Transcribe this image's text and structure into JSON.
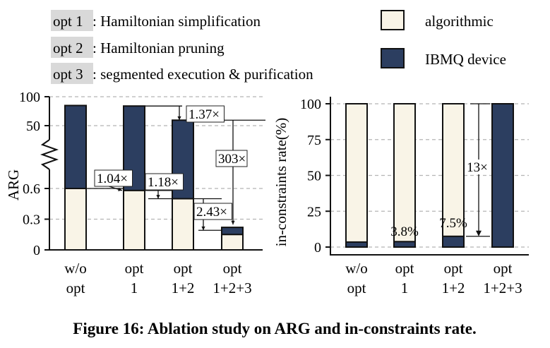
{
  "legend_text": [
    {
      "tag": "opt 1",
      "text": ": Hamiltonian simplification"
    },
    {
      "tag": "opt 2",
      "text": ": Hamiltonian pruning"
    },
    {
      "tag": "opt 3",
      "text": ": segmented execution & purification"
    }
  ],
  "legend_series": [
    {
      "name": "algorithmic",
      "color": "#f9f4e7"
    },
    {
      "name": "IBMQ device",
      "color": "#2c3e60"
    }
  ],
  "caption": "Figure 16: Ablation study on ARG and in-constraints rate.",
  "colors": {
    "algorithmic": "#f9f4e7",
    "device": "#2c3e60",
    "grid": "#b5b5b5"
  },
  "chart_data": [
    {
      "type": "bar",
      "stacked": true,
      "ylabel": "ARG",
      "y_axis": "broken",
      "y_ticks": [
        "0",
        "0.3",
        "0.6",
        "50",
        "100"
      ],
      "categories": [
        [
          "w/o",
          "opt"
        ],
        [
          "opt",
          "1"
        ],
        [
          "opt",
          "1+2"
        ],
        [
          "opt",
          "1+2+3"
        ]
      ],
      "series": [
        {
          "name": "algorithmic",
          "values": [
            0.6,
            0.58,
            0.5,
            0.15
          ]
        },
        {
          "name": "IBMQ device",
          "values": [
            81,
            80,
            57,
            0.22
          ]
        }
      ],
      "annotations": [
        "1.04×",
        "1.18×",
        "2.43×",
        "1.37×",
        "303×"
      ],
      "grid": true
    },
    {
      "type": "bar",
      "stacked": false,
      "ylabel": "in-constraints rate(%)",
      "ylim": [
        0,
        100
      ],
      "y_ticks": [
        "0",
        "25",
        "50",
        "75",
        "100"
      ],
      "categories": [
        [
          "w/o",
          "opt"
        ],
        [
          "opt",
          "1"
        ],
        [
          "opt",
          "1+2"
        ],
        [
          "opt",
          "1+2+3"
        ]
      ],
      "series": [
        {
          "name": "algorithmic",
          "values": [
            100,
            100,
            100,
            100
          ]
        },
        {
          "name": "IBMQ device",
          "values": [
            3.5,
            3.8,
            7.5,
            100
          ]
        }
      ],
      "annotations": [
        "3.8%",
        "7.5%",
        "13×"
      ],
      "grid": true
    }
  ]
}
